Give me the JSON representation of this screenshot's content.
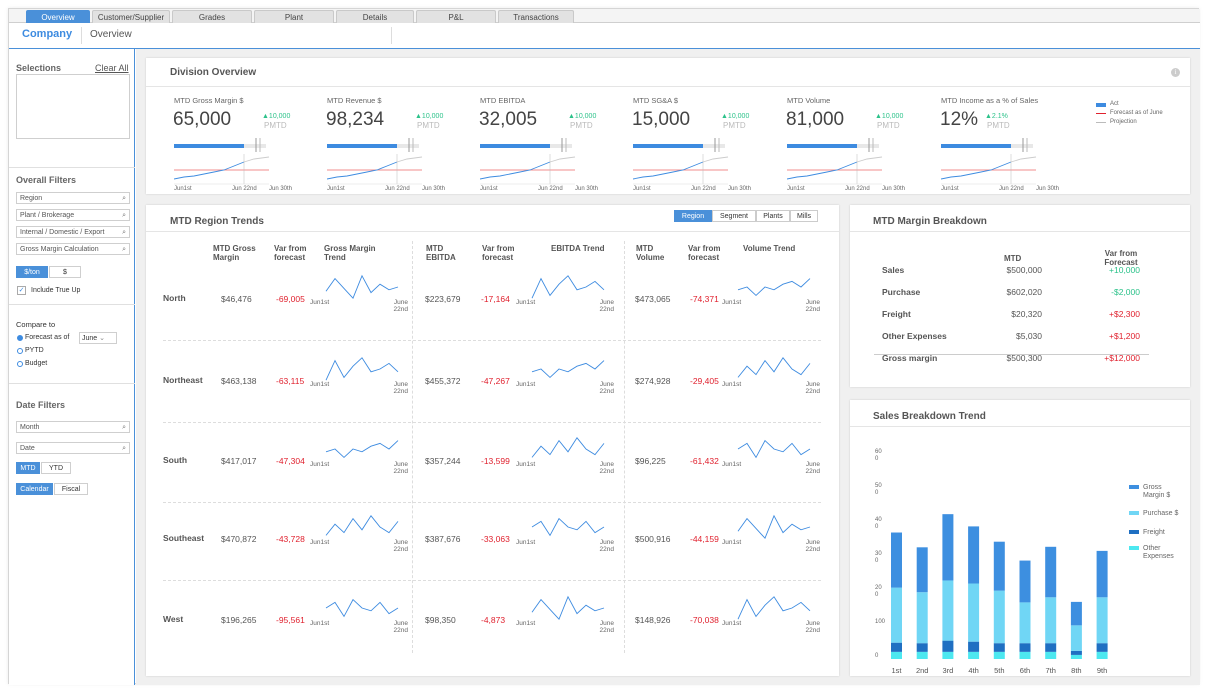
{
  "tabs": [
    "Overview",
    "Customer/Supplier",
    "Grades",
    "Plant",
    "Details",
    "P&L",
    "Transactions"
  ],
  "nav": {
    "company": "Company",
    "overview": "Overview"
  },
  "sidebar": {
    "selections": "Selections",
    "clear_all": "Clear All",
    "overall_filters": "Overall Filters",
    "filters": [
      "Region",
      "Plant / Brokerage",
      "Internal / Domestic / Export",
      "Gross Margin Calculation"
    ],
    "unit_ton": "$/ton",
    "unit_dollar": "$",
    "include_true_up": "Include True Up",
    "compare_to": "Compare to",
    "forecast_as_of": "Forecast as of",
    "forecast_month": "June",
    "pytd": "PYTD",
    "budget": "Budget",
    "date_filters": "Date Filters",
    "month": "Month",
    "date": "Date",
    "mtd": "MTD",
    "ytd": "YTD",
    "calendar": "Calendar",
    "fiscal": "Fiscal"
  },
  "division": {
    "title": "Division Overview",
    "info_icon": "info-icon",
    "kpis": [
      {
        "label": "MTD Gross Margin $",
        "value": "65,000",
        "delta": "10,000",
        "pmtd": "PMTD"
      },
      {
        "label": "MTD Revenue $",
        "value": "98,234",
        "delta": "10,000",
        "pmtd": "PMTD"
      },
      {
        "label": "MTD EBITDA",
        "value": "32,005",
        "delta": "10,000",
        "pmtd": "PMTD"
      },
      {
        "label": "MTD SG&A $",
        "value": "15,000",
        "delta": "10,000",
        "pmtd": "PMTD"
      },
      {
        "label": "MTD Volume",
        "value": "81,000",
        "delta": "10,000",
        "pmtd": "PMTD"
      },
      {
        "label": "MTD Income as a % of Sales",
        "value": "12%",
        "delta": "2.1%",
        "pmtd": "PMTD"
      }
    ],
    "axis": [
      "Jun1st",
      "Jun 22nd",
      "Jun 30th"
    ],
    "legend": {
      "act": "Act",
      "forecast": "Forecast as of June",
      "projection": "Projection"
    }
  },
  "region_trends": {
    "title": "MTD Region Trends",
    "toggles": [
      "Region",
      "Segment",
      "Plants",
      "Mills"
    ],
    "headers": {
      "gm": "MTD Gross Margin",
      "var1": "Var from forecast",
      "gm_trend": "Gross Margin Trend",
      "ebitda": "MTD EBITDA",
      "var2": "Var from forecast",
      "ebitda_trend": "EBITDA Trend",
      "vol": "MTD Volume",
      "var3": "Var from forecast",
      "vol_trend": "Volume Trend"
    },
    "spark_start": "Jun1st",
    "spark_end": "June 22nd",
    "rows": [
      {
        "name": "North",
        "gm": "$46,476",
        "gm_var": "-69,005",
        "ebitda": "$223,679",
        "ebitda_var": "-17,164",
        "vol": "$473,065",
        "vol_var": "-74,371"
      },
      {
        "name": "Northeast",
        "gm": "$463,138",
        "gm_var": "-63,115",
        "ebitda": "$455,372",
        "ebitda_var": "-47,267",
        "vol": "$274,928",
        "vol_var": "-29,405"
      },
      {
        "name": "South",
        "gm": "$417,017",
        "gm_var": "-47,304",
        "ebitda": "$357,244",
        "ebitda_var": "-13,599",
        "vol": "$96,225",
        "vol_var": "-61,432"
      },
      {
        "name": "Southeast",
        "gm": "$470,872",
        "gm_var": "-43,728",
        "ebitda": "$387,676",
        "ebitda_var": "-33,063",
        "vol": "$500,916",
        "vol_var": "-44,159"
      },
      {
        "name": "West",
        "gm": "$196,265",
        "gm_var": "-95,561",
        "ebitda": "$98,350",
        "ebitda_var": "-4,873",
        "vol": "$148,926",
        "vol_var": "-70,038"
      }
    ]
  },
  "margin": {
    "title": "MTD Margin Breakdown",
    "col_mtd": "MTD",
    "col_var": "Var from Forecast",
    "rows": [
      {
        "label": "Sales",
        "mtd": "$500,000",
        "var": "+10,000",
        "color": "#2cc28a"
      },
      {
        "label": "Purchase",
        "mtd": "$602,020",
        "var": "-$2,000",
        "color": "#2cc28a"
      },
      {
        "label": "Freight",
        "mtd": "$20,320",
        "var": "+$2,300",
        "color": "#e0212e"
      },
      {
        "label": "Other Expenses",
        "mtd": "$5,030",
        "var": "+$1,200",
        "color": "#e0212e"
      },
      {
        "label": "Gross margin",
        "mtd": "$500,300",
        "var": "+$12,000",
        "color": "#e0212e"
      }
    ]
  },
  "chart_data": {
    "type": "bar",
    "title": "Sales Breakdown Trend",
    "categories": [
      "1st",
      "2nd",
      "3rd",
      "4th",
      "5th",
      "6th",
      "7th",
      "8th",
      "9th"
    ],
    "xlabel": "June",
    "y_tick_labels": [
      "0",
      "100",
      "20\n0",
      "30\n0",
      "40\n0",
      "50\n0",
      "60\n0"
    ],
    "series": [
      {
        "name": "Other Expenses",
        "color": "#4de8f0",
        "values": [
          14,
          14,
          14,
          14,
          14,
          14,
          14,
          8,
          14
        ]
      },
      {
        "name": "Freight",
        "color": "#1f6fc2",
        "values": [
          18,
          17,
          22,
          20,
          17,
          17,
          17,
          8,
          17
        ]
      },
      {
        "name": "Purchase $",
        "color": "#70d6f5",
        "values": [
          108,
          100,
          118,
          114,
          103,
          80,
          90,
          50,
          90
        ]
      },
      {
        "name": "Gross Margin $",
        "color": "#3d8fe0",
        "values": [
          108,
          88,
          130,
          112,
          96,
          82,
          99,
          46,
          91
        ]
      }
    ],
    "legend": [
      "Gross Margin $",
      "Purchase $",
      "Freight",
      "Other Expenses"
    ]
  }
}
